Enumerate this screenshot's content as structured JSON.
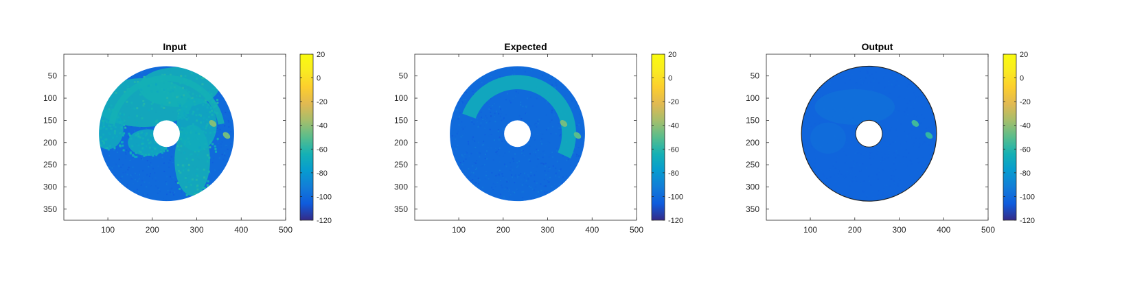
{
  "chart_data": [
    {
      "type": "heatmap",
      "title": "Input",
      "xlabel": "",
      "ylabel": "",
      "xlim": [
        1,
        500
      ],
      "ylim": [
        1,
        375
      ],
      "y_reversed": true,
      "x_ticks": [
        100,
        200,
        300,
        400,
        500
      ],
      "y_ticks": [
        50,
        100,
        150,
        200,
        250,
        300,
        350
      ],
      "colorbar": {
        "range": [
          -120,
          20
        ],
        "ticks": [
          20,
          0,
          -20,
          -40,
          -60,
          -80,
          -100,
          -120
        ],
        "colormap": "parula"
      },
      "disc": {
        "center": [
          232,
          180
        ],
        "outer_radius": 152,
        "inner_radius": 30
      },
      "background_level": -100,
      "blobs": [
        {
          "cx": 180,
          "cy": 110,
          "rx": 110,
          "ry": 55,
          "level": -65
        },
        {
          "cx": 260,
          "cy": 75,
          "rx": 90,
          "ry": 45,
          "level": -65
        },
        {
          "cx": 100,
          "cy": 170,
          "rx": 35,
          "ry": 45,
          "level": -68
        },
        {
          "cx": 190,
          "cy": 200,
          "rx": 45,
          "ry": 30,
          "level": -68
        },
        {
          "cx": 290,
          "cy": 240,
          "rx": 40,
          "ry": 80,
          "level": -65
        },
        {
          "cx": 300,
          "cy": 160,
          "rx": 45,
          "ry": 60,
          "level": -68
        }
      ],
      "arc": {
        "r_inner": 118,
        "r_outer": 132,
        "start_deg": -80,
        "end_deg": 80,
        "level": -65
      },
      "hot_spots": [
        {
          "x": 336,
          "y": 157,
          "level": -42
        },
        {
          "x": 367,
          "y": 184,
          "level": -45
        }
      ]
    },
    {
      "type": "heatmap",
      "title": "Expected",
      "xlabel": "",
      "ylabel": "",
      "xlim": [
        1,
        500
      ],
      "ylim": [
        1,
        375
      ],
      "y_reversed": true,
      "x_ticks": [
        100,
        200,
        300,
        400,
        500
      ],
      "y_ticks": [
        50,
        100,
        150,
        200,
        250,
        300,
        350
      ],
      "colorbar": {
        "range": [
          -120,
          20
        ],
        "ticks": [
          20,
          0,
          -20,
          -40,
          -60,
          -80,
          -100,
          -120
        ],
        "colormap": "parula"
      },
      "disc": {
        "center": [
          232,
          180
        ],
        "outer_radius": 152,
        "inner_radius": 30
      },
      "background_level": -100,
      "blobs": [],
      "arc": {
        "r_inner": 100,
        "r_outer": 132,
        "start_deg": -70,
        "end_deg": 115,
        "level": -67
      },
      "hot_spots": [
        {
          "x": 336,
          "y": 157,
          "level": -45
        },
        {
          "x": 367,
          "y": 184,
          "level": -50
        }
      ]
    },
    {
      "type": "heatmap",
      "title": "Output",
      "xlabel": "",
      "ylabel": "",
      "xlim": [
        1,
        500
      ],
      "ylim": [
        1,
        375
      ],
      "y_reversed": true,
      "x_ticks": [
        100,
        200,
        300,
        400,
        500
      ],
      "y_ticks": [
        50,
        100,
        150,
        200,
        250,
        300,
        350
      ],
      "colorbar": {
        "range": [
          -120,
          20
        ],
        "ticks": [
          20,
          0,
          -20,
          -40,
          -60,
          -80,
          -100,
          -120
        ],
        "colormap": "parula"
      },
      "disc": {
        "center": [
          232,
          180
        ],
        "outer_radius": 152,
        "inner_radius": 30
      },
      "background_level": -102,
      "blobs": [
        {
          "cx": 200,
          "cy": 120,
          "rx": 90,
          "ry": 40,
          "level": -96
        },
        {
          "cx": 140,
          "cy": 190,
          "rx": 40,
          "ry": 35,
          "level": -97
        }
      ],
      "arc": null,
      "hot_spots": [
        {
          "x": 336,
          "y": 157,
          "level": -55
        },
        {
          "x": 367,
          "y": 184,
          "level": -58
        }
      ]
    }
  ]
}
